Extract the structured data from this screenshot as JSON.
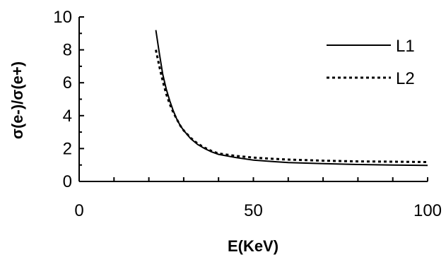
{
  "chart_data": {
    "type": "line",
    "title": "",
    "xlabel": "E(KeV)",
    "ylabel": "σ(e-)/σ(e+)",
    "xlim": [
      0,
      100
    ],
    "ylim": [
      0,
      10
    ],
    "x_ticks": [
      "0",
      "50",
      "100"
    ],
    "y_ticks": [
      "0",
      "2",
      "4",
      "6",
      "8",
      "10"
    ],
    "grid": false,
    "legend_position": "top-right",
    "series": [
      {
        "name": "L1",
        "line_style": "solid",
        "color": "#000000",
        "points": [
          [
            22,
            9.2
          ],
          [
            23,
            7.8
          ],
          [
            24,
            6.5
          ],
          [
            25,
            5.6
          ],
          [
            26,
            4.9
          ],
          [
            27,
            4.3
          ],
          [
            28,
            3.8
          ],
          [
            29,
            3.4
          ],
          [
            30,
            3.1
          ],
          [
            32,
            2.6
          ],
          [
            34,
            2.25
          ],
          [
            36,
            2.0
          ],
          [
            38,
            1.8
          ],
          [
            40,
            1.65
          ],
          [
            45,
            1.45
          ],
          [
            50,
            1.3
          ],
          [
            55,
            1.22
          ],
          [
            60,
            1.15
          ],
          [
            70,
            1.08
          ],
          [
            80,
            1.03
          ],
          [
            90,
            1.0
          ],
          [
            100,
            0.98
          ]
        ]
      },
      {
        "name": "L2",
        "line_style": "dotted",
        "color": "#000000",
        "points": [
          [
            22,
            8.0
          ],
          [
            23,
            7.0
          ],
          [
            24,
            6.1
          ],
          [
            25,
            5.3
          ],
          [
            26,
            4.7
          ],
          [
            27,
            4.2
          ],
          [
            28,
            3.8
          ],
          [
            29,
            3.4
          ],
          [
            30,
            3.1
          ],
          [
            32,
            2.65
          ],
          [
            34,
            2.3
          ],
          [
            36,
            2.05
          ],
          [
            38,
            1.85
          ],
          [
            40,
            1.7
          ],
          [
            45,
            1.55
          ],
          [
            50,
            1.45
          ],
          [
            55,
            1.38
          ],
          [
            60,
            1.33
          ],
          [
            70,
            1.26
          ],
          [
            80,
            1.22
          ],
          [
            90,
            1.2
          ],
          [
            100,
            1.18
          ]
        ]
      }
    ]
  }
}
